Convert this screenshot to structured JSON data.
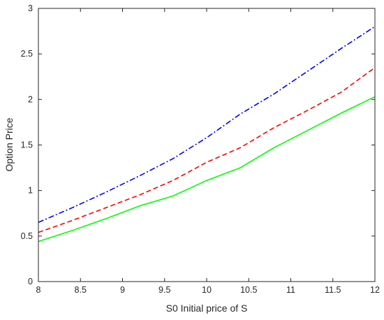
{
  "chart_data": {
    "type": "line",
    "title": "",
    "xlabel": "S0 Initial price of S",
    "ylabel": "Option Price",
    "xlim": [
      8,
      12
    ],
    "ylim": [
      0,
      3
    ],
    "xticks": [
      8,
      8.5,
      9,
      9.5,
      10,
      10.5,
      11,
      11.5,
      12
    ],
    "yticks": [
      0,
      0.5,
      1,
      1.5,
      2,
      2.5,
      3
    ],
    "grid": false,
    "legend": "none",
    "series": [
      {
        "color": "#0000ff",
        "dash": "dashdot",
        "x": [
          8,
          8.4,
          8.8,
          9.2,
          9.6,
          10,
          10.4,
          10.8,
          11.2,
          11.6,
          12
        ],
        "y": [
          0.65,
          0.81,
          0.98,
          1.16,
          1.35,
          1.58,
          1.84,
          2.06,
          2.31,
          2.56,
          2.8
        ]
      },
      {
        "color": "#ff0000",
        "dash": "dashed",
        "x": [
          8,
          8.4,
          8.8,
          9.2,
          9.6,
          10,
          10.4,
          10.8,
          11.2,
          11.6,
          12
        ],
        "y": [
          0.54,
          0.67,
          0.81,
          0.95,
          1.11,
          1.31,
          1.47,
          1.69,
          1.88,
          2.08,
          2.35
        ]
      },
      {
        "color": "#00ff00",
        "dash": "solid",
        "x": [
          8,
          8.4,
          8.8,
          9.2,
          9.6,
          10,
          10.4,
          10.8,
          11.2,
          11.6,
          12
        ],
        "y": [
          0.44,
          0.56,
          0.69,
          0.83,
          0.94,
          1.11,
          1.25,
          1.47,
          1.66,
          1.85,
          2.03
        ]
      }
    ]
  }
}
